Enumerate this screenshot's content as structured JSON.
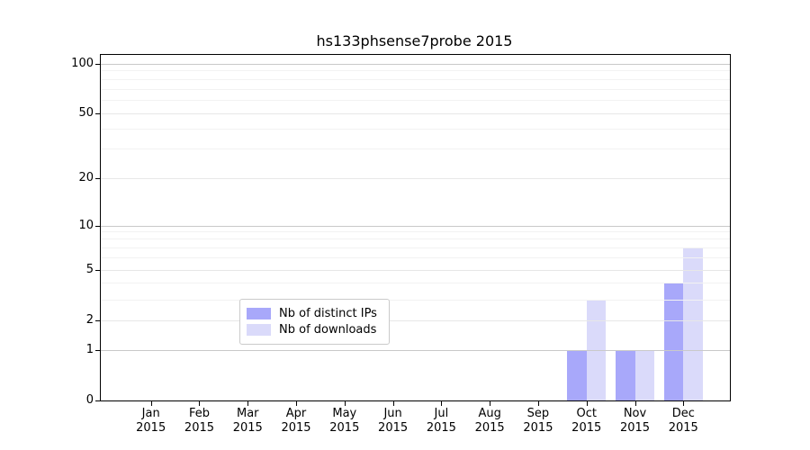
{
  "chart_data": {
    "type": "bar",
    "title": "hs133phsense7probe 2015",
    "grid": true,
    "x": {
      "categories": [
        "Jan",
        "Feb",
        "Mar",
        "Apr",
        "May",
        "Jun",
        "Jul",
        "Aug",
        "Sep",
        "Oct",
        "Nov",
        "Dec"
      ],
      "year": "2015"
    },
    "y": {
      "scale": "log-like",
      "tick_values": [
        0,
        1,
        2,
        5,
        10,
        20,
        50,
        100
      ],
      "tick_labels": [
        "0",
        "1",
        "2",
        "5",
        "10",
        "20",
        "50",
        "100"
      ],
      "range": [
        0,
        100
      ]
    },
    "series": [
      {
        "name": "Nb of distinct IPs",
        "color": "#a8a8fa",
        "values": [
          0,
          0,
          0,
          0,
          0,
          0,
          0,
          0,
          0,
          1,
          1,
          4
        ]
      },
      {
        "name": "Nb of downloads",
        "color": "#dadafa",
        "values": [
          0,
          0,
          0,
          0,
          0,
          0,
          0,
          0,
          0,
          3,
          1,
          7
        ]
      }
    ],
    "legend": {
      "position": "lower center",
      "entries": [
        "Nb of distinct IPs",
        "Nb of downloads"
      ]
    }
  }
}
